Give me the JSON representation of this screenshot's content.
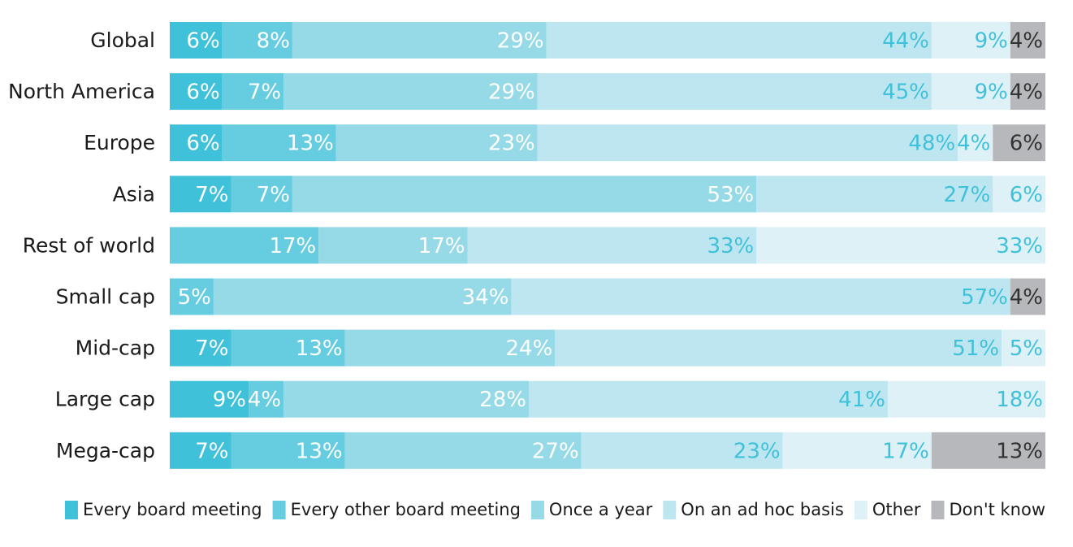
{
  "chart_data": {
    "type": "bar",
    "orientation": "horizontal",
    "stacked": true,
    "normalized": true,
    "xlim": [
      0,
      100
    ],
    "grid": false,
    "legend_position": "bottom-right",
    "categories": [
      "Global",
      "North America",
      "Europe",
      "Asia",
      "Rest of world",
      "Small cap",
      "Mid-cap",
      "Large cap",
      "Mega-cap"
    ],
    "series": [
      {
        "name": "Every board meeting",
        "color": "#40C1DA",
        "label_color": "#ffffff",
        "values": [
          6,
          6,
          6,
          7,
          0,
          0,
          7,
          9,
          7
        ]
      },
      {
        "name": "Every other board meeting",
        "color": "#66CDE0",
        "label_color": "#ffffff",
        "values": [
          8,
          7,
          13,
          7,
          17,
          5,
          13,
          4,
          13
        ]
      },
      {
        "name": "Once a year",
        "color": "#96D9E7",
        "label_color": "#ffffff",
        "values": [
          29,
          29,
          23,
          53,
          17,
          34,
          24,
          28,
          27
        ]
      },
      {
        "name": "On an ad hoc basis",
        "color": "#BEE6F0",
        "label_color": "#40C1DA",
        "values": [
          44,
          45,
          48,
          27,
          33,
          57,
          51,
          41,
          23
        ]
      },
      {
        "name": "Other",
        "color": "#DDF1F7",
        "label_color": "#40C1DA",
        "values": [
          9,
          9,
          4,
          6,
          33,
          0,
          5,
          18,
          17
        ]
      },
      {
        "name": "Don't know",
        "color": "#B7B8BB",
        "label_color": "#333333",
        "values": [
          4,
          4,
          6,
          0,
          0,
          4,
          0,
          0,
          13
        ]
      }
    ]
  }
}
